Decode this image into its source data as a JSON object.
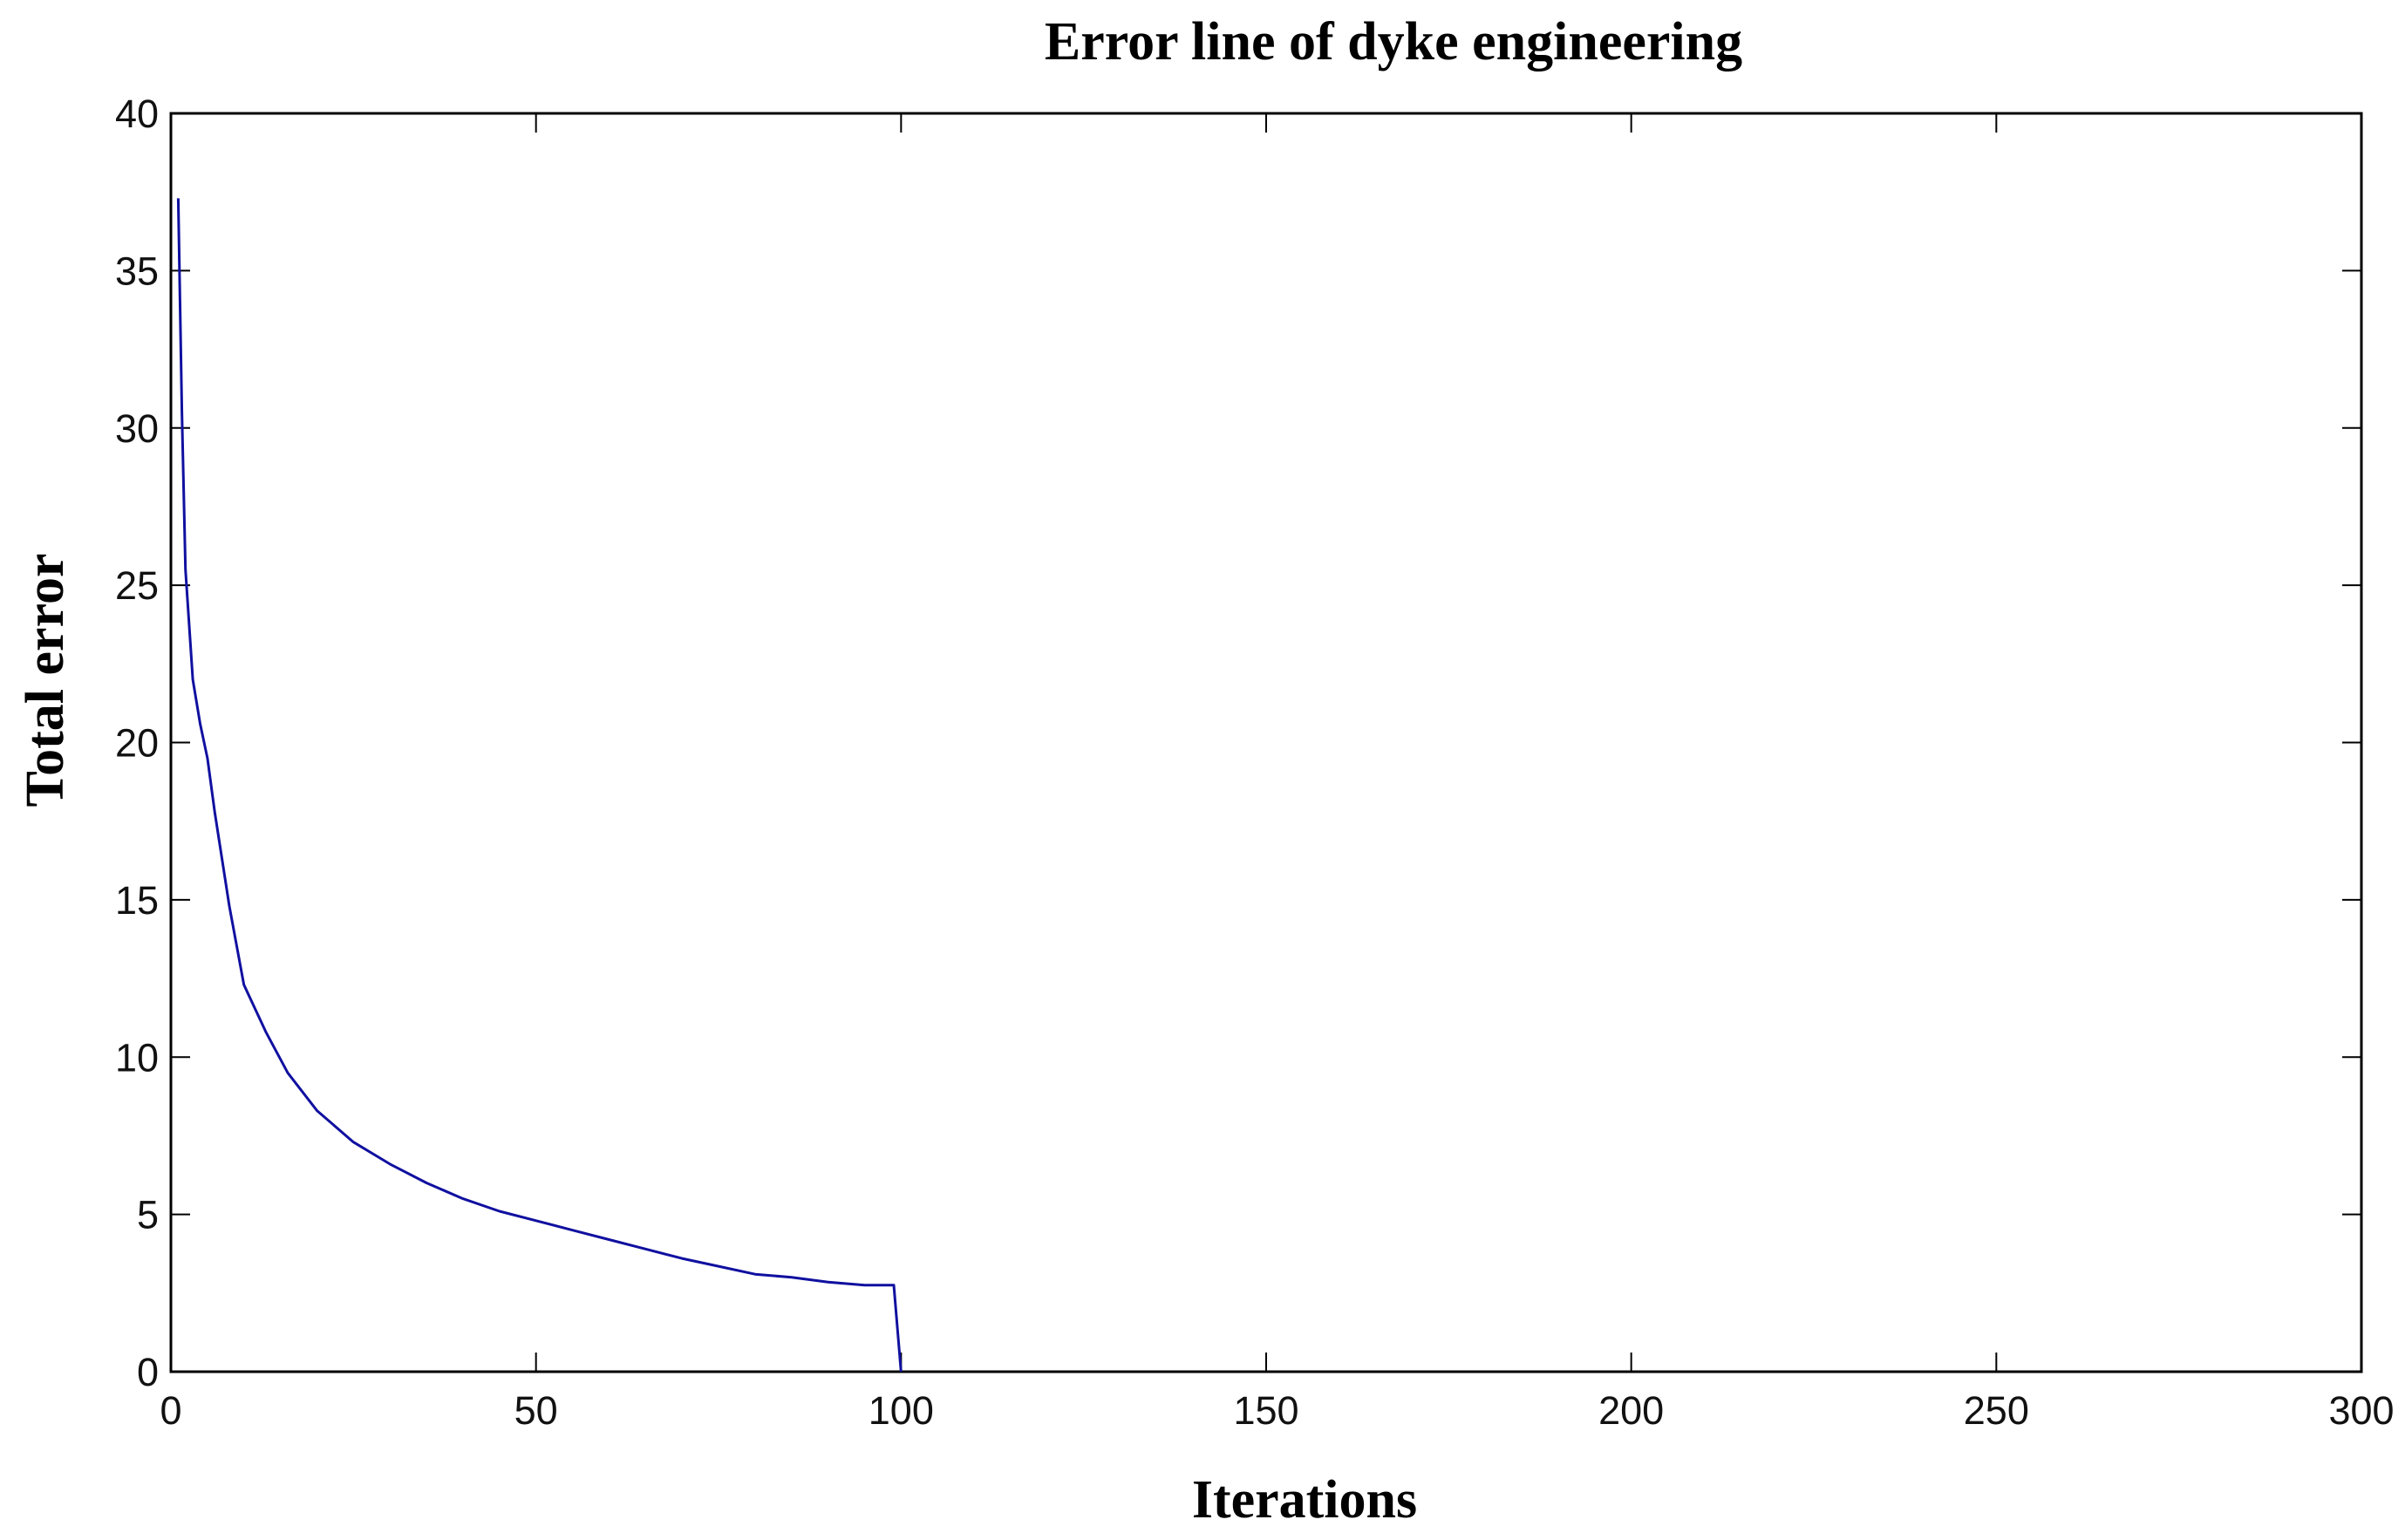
{
  "chart_data": {
    "type": "line",
    "title": "Error line of dyke engineering",
    "xlabel": "Iterations",
    "ylabel": "Total error",
    "xlim": [
      0,
      300
    ],
    "ylim": [
      0,
      40
    ],
    "xticks": [
      0,
      50,
      100,
      150,
      200,
      250,
      300
    ],
    "yticks": [
      0,
      5,
      10,
      15,
      20,
      25,
      30,
      35,
      40
    ],
    "grid": false,
    "series": [
      {
        "color": "#1010a0",
        "x": [
          1,
          1.5,
          2,
          3,
          4,
          5,
          6,
          8,
          10,
          13,
          16,
          20,
          25,
          30,
          35,
          40,
          45,
          50,
          55,
          60,
          65,
          70,
          75,
          80,
          85,
          90,
          95,
          99,
          100
        ],
        "y": [
          37.3,
          30.5,
          25.5,
          22.0,
          20.6,
          19.5,
          17.8,
          14.8,
          12.3,
          10.8,
          9.5,
          8.3,
          7.3,
          6.6,
          6.0,
          5.5,
          5.1,
          4.8,
          4.5,
          4.2,
          3.9,
          3.6,
          3.35,
          3.1,
          3.0,
          2.85,
          2.75,
          2.75,
          0
        ]
      }
    ]
  }
}
